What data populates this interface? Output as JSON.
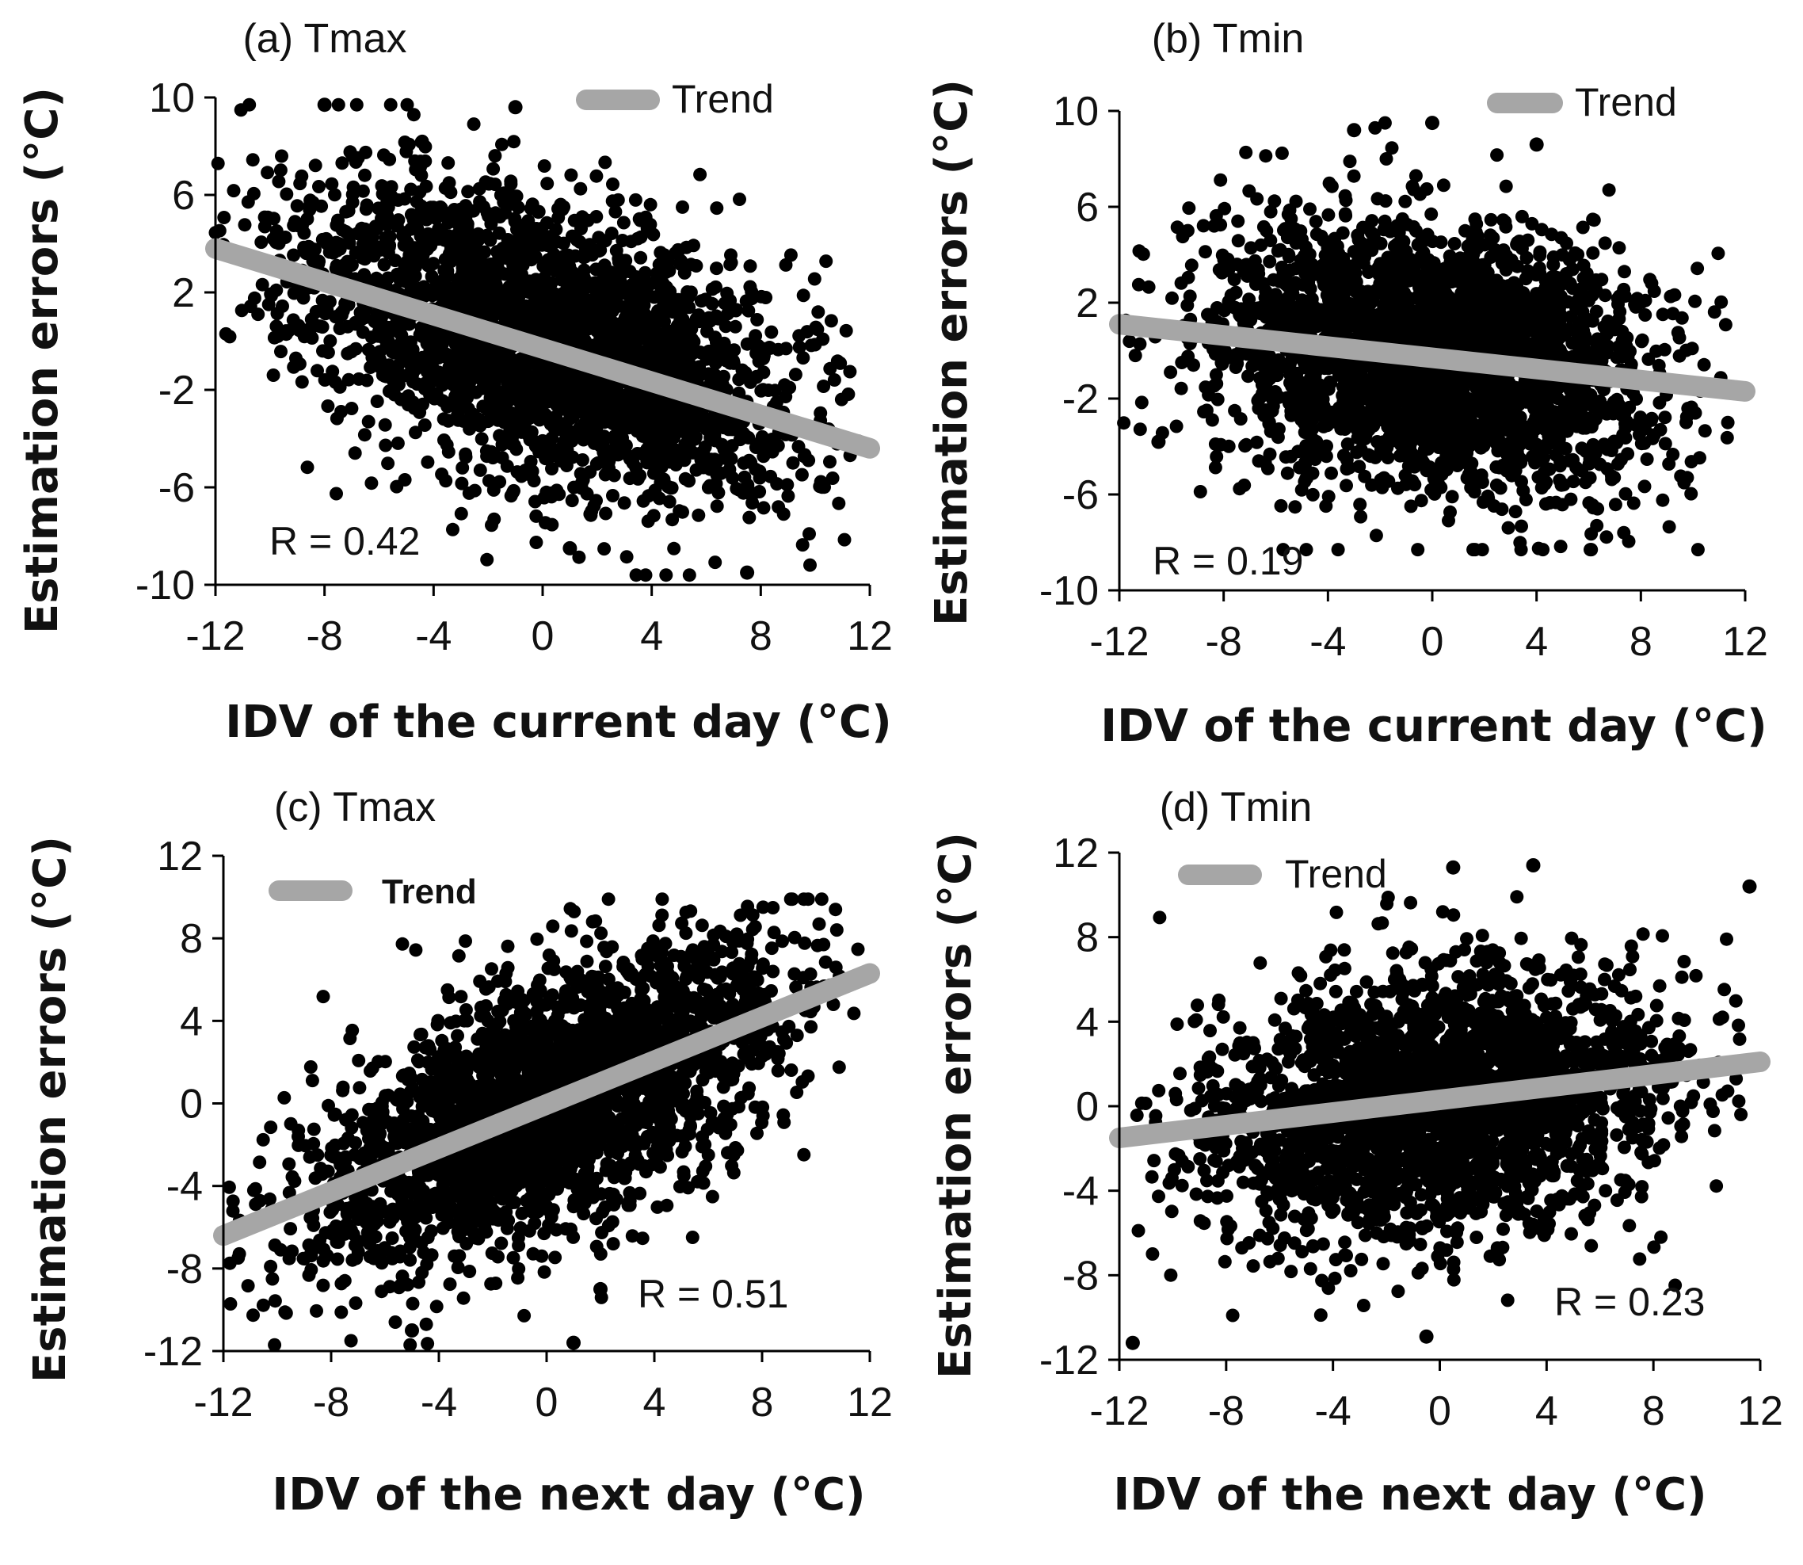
{
  "colors": {
    "points": "#000000",
    "trend": "#a6a6a6",
    "axis": "#000000"
  },
  "chart_data": [
    {
      "type": "scatter",
      "title": "(a) Tmax",
      "xlabel": "IDV of the current day (°C)",
      "ylabel": "Estimation errors (°C)",
      "xlim": [
        -12,
        12
      ],
      "ylim": [
        -10,
        10
      ],
      "xticks": [
        -12,
        -8,
        -4,
        0,
        4,
        8,
        12
      ],
      "yticks": [
        -10,
        -6,
        -2,
        2,
        6,
        10
      ],
      "xtick_labels": [
        "-12",
        "-8",
        "-4",
        "0",
        "4",
        "8",
        "12"
      ],
      "ytick_labels": [
        "-10",
        "-6",
        "-2",
        "2",
        "6",
        "10"
      ],
      "legend": {
        "label": "Trend",
        "position": "top-right"
      },
      "trend": {
        "x": [
          -12,
          12
        ],
        "y": [
          3.8,
          -4.4
        ]
      },
      "annotation": "R = 0.42",
      "cloud": {
        "x_range": [
          -12,
          11.6
        ],
        "x_center": 0,
        "x_spread": 4.5,
        "slope": -0.34,
        "intercept": 0,
        "y_spread": 2.9,
        "ymin": -9.6,
        "ymax": 9.7
      },
      "outliers": [
        {
          "x": -1,
          "y": 9.6
        },
        {
          "x": 7.5,
          "y": -9.5
        },
        {
          "x": 1,
          "y": -8.5
        },
        {
          "x": -8,
          "y": 9.7
        }
      ]
    },
    {
      "type": "scatter",
      "title": "(b) Tmin",
      "xlabel": "IDV of the current day (°C)",
      "ylabel": "Estimation errors (°C)",
      "xlim": [
        -12,
        12
      ],
      "ylim": [
        -10,
        10
      ],
      "xticks": [
        -12,
        -8,
        -4,
        0,
        4,
        8,
        12
      ],
      "yticks": [
        -10,
        -6,
        -2,
        2,
        6,
        10
      ],
      "xtick_labels": [
        "-12",
        "-8",
        "-4",
        "0",
        "4",
        "8",
        "12"
      ],
      "ytick_labels": [
        "-10",
        "-6",
        "-2",
        "2",
        "6",
        "10"
      ],
      "legend": {
        "label": "Trend",
        "position": "top-right"
      },
      "trend": {
        "x": [
          -12,
          12
        ],
        "y": [
          1.1,
          -1.7
        ]
      },
      "annotation": "R = 0.19",
      "cloud": {
        "x_range": [
          -12,
          11.6
        ],
        "x_center": 0,
        "x_spread": 4.2,
        "slope": -0.12,
        "intercept": -0.3,
        "y_spread": 2.8,
        "ymin": -8.3,
        "ymax": 9.5
      },
      "outliers": [
        {
          "x": 0,
          "y": 9.5
        },
        {
          "x": -3,
          "y": 9.2
        },
        {
          "x": 4,
          "y": 8.6
        },
        {
          "x": -10.5,
          "y": -3.8
        }
      ]
    },
    {
      "type": "scatter",
      "title": "(c) Tmax",
      "xlabel": "IDV of the next day (°C)",
      "ylabel": "Estimation errors (°C)",
      "xlim": [
        -12,
        12
      ],
      "ylim": [
        -12,
        12
      ],
      "xticks": [
        -12,
        -8,
        -4,
        0,
        4,
        8,
        12
      ],
      "yticks": [
        -12,
        -8,
        -4,
        0,
        4,
        8,
        12
      ],
      "xtick_labels": [
        "-12",
        "-8",
        "-4",
        "0",
        "4",
        "8",
        "12"
      ],
      "ytick_labels": [
        "-12",
        "-8",
        "-4",
        "0",
        "4",
        "8",
        "12"
      ],
      "legend": {
        "label": "Trend",
        "position": "top-left",
        "bold": true
      },
      "trend": {
        "x": [
          -12,
          12
        ],
        "y": [
          -6.4,
          6.3
        ]
      },
      "annotation": "R = 0.51",
      "cloud": {
        "x_range": [
          -12,
          11.6
        ],
        "x_center": 0,
        "x_spread": 4.5,
        "slope": 0.52,
        "intercept": 0,
        "y_spread": 3.0,
        "ymin": -11.7,
        "ymax": 9.9
      },
      "outliers": [
        {
          "x": 1,
          "y": -11.6
        },
        {
          "x": 2,
          "y": -9
        },
        {
          "x": -5,
          "y": -11
        }
      ]
    },
    {
      "type": "scatter",
      "title": "(d) Tmin",
      "xlabel": "IDV of the next day (°C)",
      "ylabel": "Estimation errors (°C)",
      "xlim": [
        -12,
        12
      ],
      "ylim": [
        -12,
        12
      ],
      "xticks": [
        -12,
        -8,
        -4,
        0,
        4,
        8,
        12
      ],
      "yticks": [
        -12,
        -8,
        -4,
        0,
        4,
        8,
        12
      ],
      "xtick_labels": [
        "-12",
        "-8",
        "-4",
        "0",
        "4",
        "8",
        "12"
      ],
      "ytick_labels": [
        "-12",
        "-8",
        "-4",
        "0",
        "4",
        "8",
        "12"
      ],
      "legend": {
        "label": "Trend",
        "position": "top-left"
      },
      "trend": {
        "x": [
          -12,
          12
        ],
        "y": [
          -1.5,
          2.1
        ]
      },
      "annotation": "R = 0.23",
      "cloud": {
        "x_range": [
          -12,
          11.6
        ],
        "x_center": 0,
        "x_spread": 4.3,
        "slope": 0.15,
        "intercept": 0.3,
        "y_spread": 3.0,
        "ymin": -11.2,
        "ymax": 11.4
      },
      "outliers": [
        {
          "x": 0.5,
          "y": 11.3
        },
        {
          "x": 3.5,
          "y": 11.4
        },
        {
          "x": -11.5,
          "y": -11.2
        },
        {
          "x": -0.5,
          "y": -10.9
        },
        {
          "x": 11.6,
          "y": 10.4
        }
      ]
    }
  ]
}
